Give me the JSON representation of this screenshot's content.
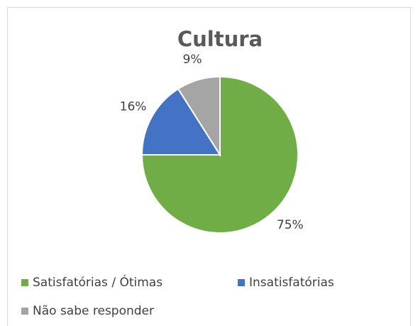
{
  "chart_data": {
    "type": "pie",
    "title": "Cultura",
    "categories": [
      "Satisfatórias / Ótimas",
      "Insatisfatórias",
      "Não sabe responder"
    ],
    "values": [
      75,
      16,
      9
    ],
    "value_labels": [
      "75%",
      "16%",
      "9%"
    ],
    "colors": [
      "#70ad47",
      "#4472c4",
      "#a5a5a5"
    ]
  }
}
